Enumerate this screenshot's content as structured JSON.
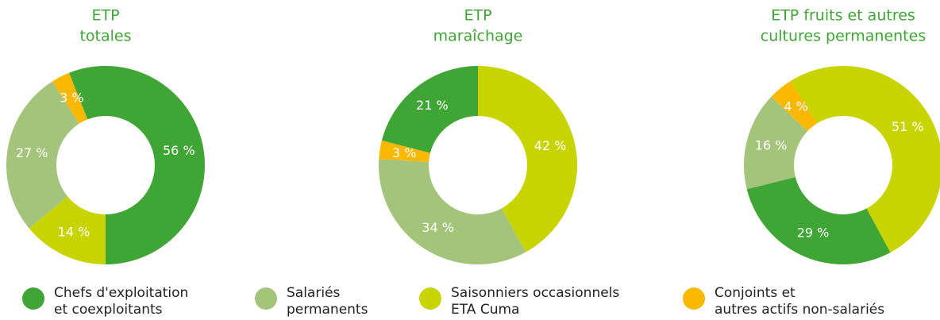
{
  "chart_data": [
    {
      "type": "pie",
      "title": [
        "ETP",
        "totales"
      ],
      "values": [
        56,
        27,
        14,
        3
      ],
      "value_labels": [
        "56 %",
        "27 %",
        "14 %",
        "3 %"
      ]
    },
    {
      "type": "pie",
      "title": [
        "ETP",
        "maraîchage"
      ],
      "values": [
        21,
        34,
        42,
        3
      ],
      "value_labels": [
        "21 %",
        "34 %",
        "42 %",
        "3 %"
      ]
    },
    {
      "type": "pie",
      "title": [
        "ETP fruits et autres",
        "cultures permanentes"
      ],
      "values": [
        29,
        16,
        51,
        4
      ],
      "value_labels": [
        "29 %",
        "16 %",
        "51 %",
        "4 %"
      ]
    }
  ],
  "legend": [
    {
      "name": [
        "Chefs d'exploitation",
        "et coexploitants"
      ],
      "color": "#3fa535"
    },
    {
      "name": [
        "Salariés",
        "permanents"
      ],
      "color": "#a3c47a"
    },
    {
      "name": [
        "Saisonniers occasionnels",
        "ETA Cuma"
      ],
      "color": "#c8d400"
    },
    {
      "name": [
        "Conjoints et",
        "autres actifs non-salariés"
      ],
      "color": "#fbb800"
    }
  ]
}
